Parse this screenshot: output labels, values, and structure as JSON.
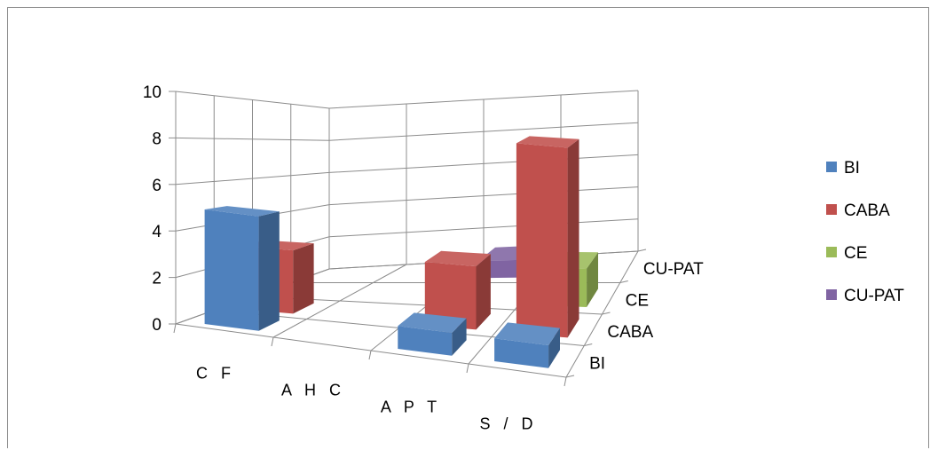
{
  "chart_data": {
    "type": "bar",
    "subtype": "3d-clustered-column",
    "categories": [
      "C F",
      "A H C",
      "A P T",
      "S / D"
    ],
    "depth_categories": [
      "BI",
      "CABA",
      "CE",
      "CU-PAT"
    ],
    "series": [
      {
        "name": "BI",
        "color": "#4f81bd",
        "values": [
          5,
          0,
          1,
          1
        ]
      },
      {
        "name": "CABA",
        "color": "#c0504d",
        "values": [
          3,
          0,
          3,
          9
        ]
      },
      {
        "name": "CE",
        "color": "#9bbb59",
        "values": [
          0,
          0,
          0,
          2
        ]
      },
      {
        "name": "CU-PAT",
        "color": "#8064a2",
        "values": [
          0,
          0,
          1,
          0
        ]
      }
    ],
    "ylim": [
      0,
      10
    ],
    "yticks": [
      "0",
      "2",
      "4",
      "6",
      "8",
      "10"
    ],
    "grid": true,
    "legend_position": "right"
  }
}
